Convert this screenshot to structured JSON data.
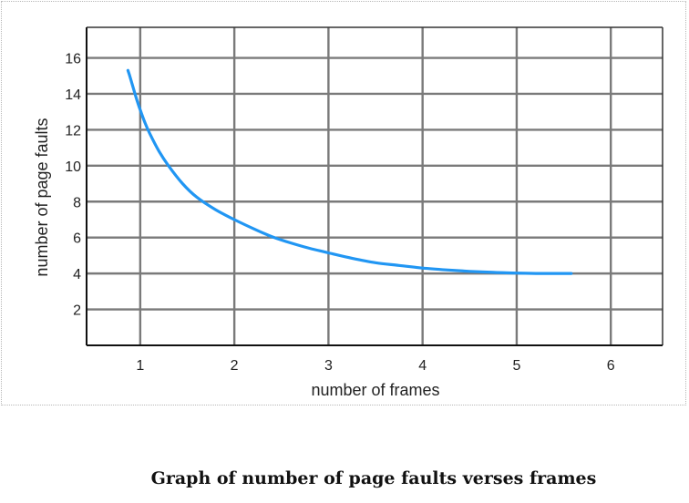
{
  "chart_data": {
    "type": "line",
    "xlabel": "number of frames",
    "ylabel": "number of page faults",
    "xlim": [
      0.43,
      6.55
    ],
    "ylim": [
      0,
      17.7
    ],
    "x_ticks": [
      1,
      2,
      3,
      4,
      5,
      6
    ],
    "y_ticks": [
      2,
      4,
      6,
      8,
      10,
      12,
      14,
      16
    ],
    "grid": true,
    "series": [
      {
        "x": [
          0.87,
          0.9,
          0.95,
          1.0,
          1.05,
          1.1,
          1.2,
          1.3,
          1.45,
          1.6,
          1.8,
          2.0,
          2.2,
          2.4,
          2.6,
          2.8,
          3.0,
          3.25,
          3.5,
          3.75,
          4.0,
          4.25,
          4.5,
          4.75,
          5.0,
          5.25,
          5.58
        ],
        "y": [
          15.3,
          14.8,
          13.9,
          13.1,
          12.4,
          11.8,
          10.8,
          10.0,
          9.0,
          8.25,
          7.55,
          7.0,
          6.5,
          6.05,
          5.7,
          5.4,
          5.15,
          4.85,
          4.6,
          4.45,
          4.3,
          4.2,
          4.12,
          4.06,
          4.02,
          4.0,
          4.0
        ],
        "color": "#2196f3"
      }
    ]
  },
  "caption": "Graph of number of page faults verses frames"
}
